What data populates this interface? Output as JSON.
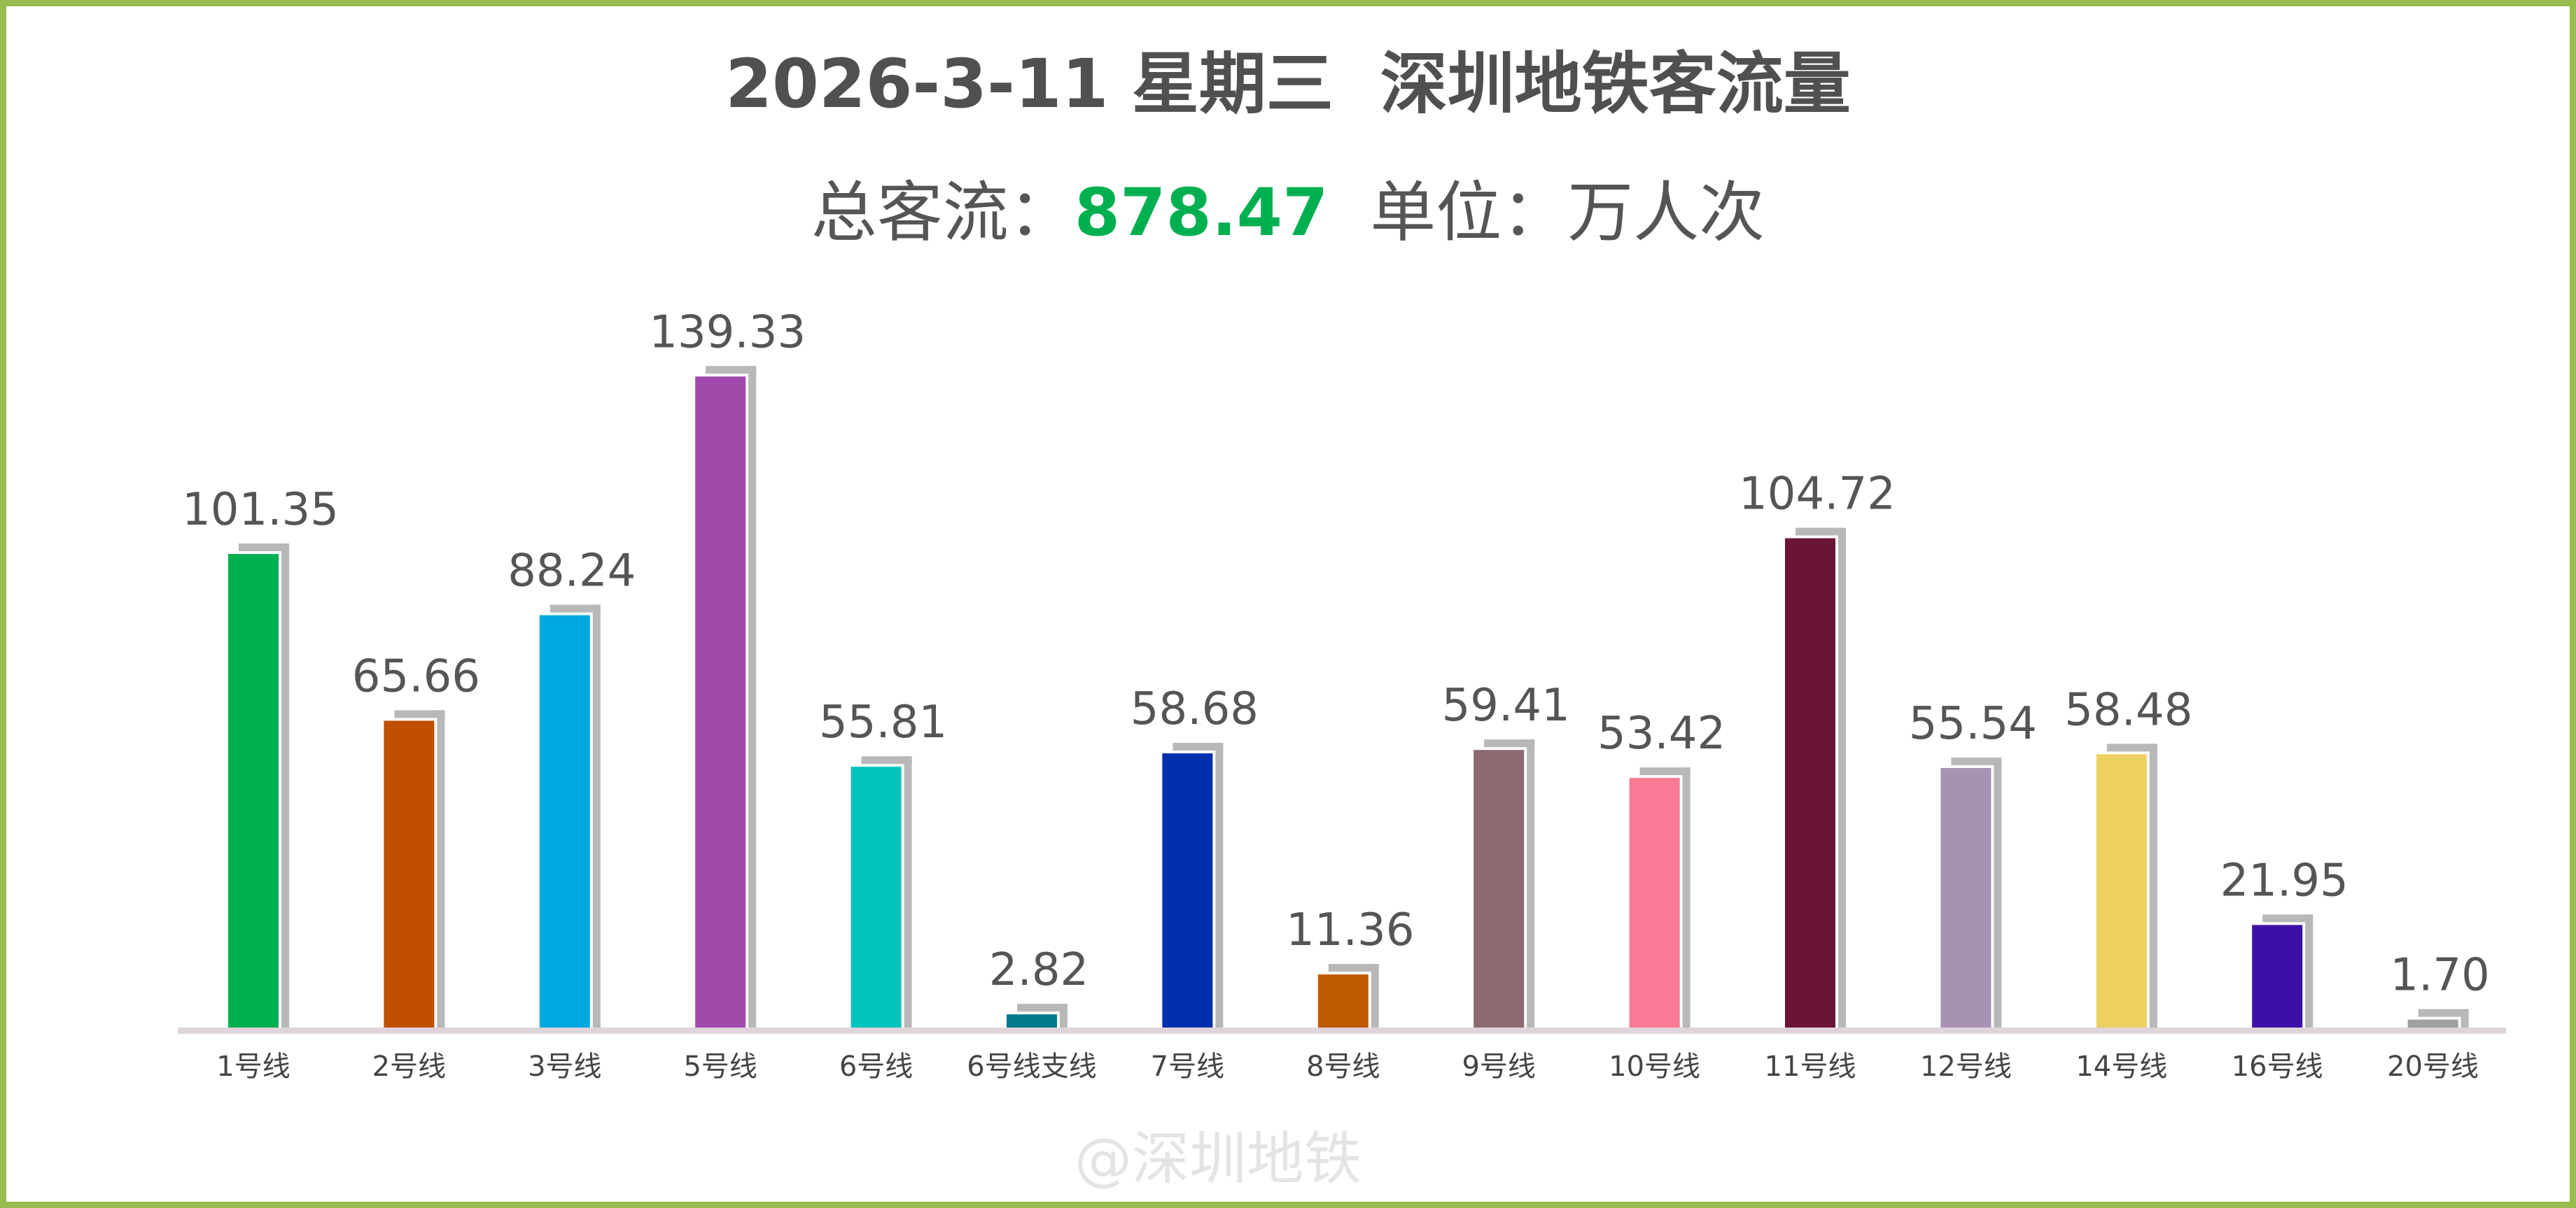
{
  "header": {
    "title": "2026-3-11 星期三  深圳地铁客流量",
    "subtitle_prefix": "总客流：",
    "subtitle_value": "878.47",
    "subtitle_suffix": "  单位：万人次"
  },
  "watermark": "@深圳地铁",
  "chart_data": {
    "type": "bar",
    "title": "2026-3-11 星期三  深圳地铁客流量",
    "categories": [
      "1号线",
      "2号线",
      "3号线",
      "5号线",
      "6号线",
      "6号线支线",
      "7号线",
      "8号线",
      "9号线",
      "10号线",
      "11号线",
      "12号线",
      "14号线",
      "16号线",
      "20号线"
    ],
    "values": [
      101.35,
      65.66,
      88.24,
      139.33,
      55.81,
      2.82,
      58.68,
      11.36,
      59.41,
      53.42,
      104.72,
      55.54,
      58.48,
      21.95,
      1.7
    ],
    "value_labels": [
      "101.35",
      "65.66",
      "88.24",
      "139.33",
      "55.81",
      "2.82",
      "58.68",
      "11.36",
      "59.41",
      "53.42",
      "104.72",
      "55.54",
      "58.48",
      "21.95",
      "1.70"
    ],
    "colors": [
      "#00b050",
      "#c05000",
      "#00a8e0",
      "#a04aac",
      "#00c4bc",
      "#007a8a",
      "#0030b0",
      "#c05a00",
      "#8a6a70",
      "#f87a94",
      "#6a1438",
      "#a892b4",
      "#eed060",
      "#3c10a8",
      "#a0a0a0"
    ],
    "shadow_color": "#b8b8b8",
    "baseline_color": "#e0d4dc",
    "ylim": [
      0,
      140
    ],
    "grid": false,
    "legend": "none",
    "xlabel": "",
    "ylabel": ""
  }
}
